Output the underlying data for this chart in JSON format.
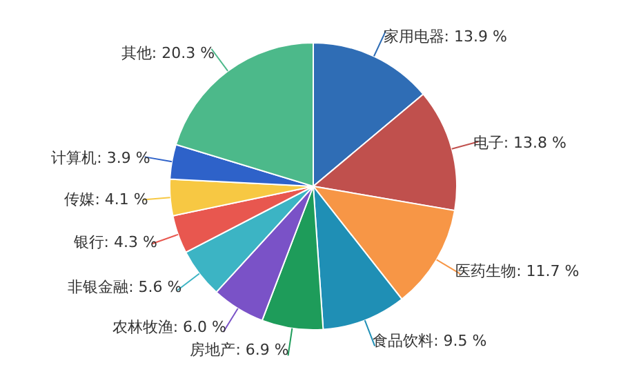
{
  "chart_data": {
    "type": "pie",
    "categories": [
      "家用电器",
      "电子",
      "医药生物",
      "食品饮料",
      "房地产",
      "农林牧渔",
      "非银金融",
      "银行",
      "传媒",
      "计算机",
      "其他"
    ],
    "values": [
      13.9,
      13.8,
      11.7,
      9.5,
      6.9,
      6.0,
      5.6,
      4.3,
      4.1,
      3.9,
      20.3
    ],
    "value_labels": [
      "13.9 %",
      "13.8 %",
      "11.7 %",
      "9.5 %",
      "6.9 %",
      "6.0 %",
      "5.6 %",
      "4.3 %",
      "4.1 %",
      "3.9 %",
      "20.3 %"
    ],
    "colors": [
      "#2f6db5",
      "#c0504d",
      "#f79646",
      "#1f8fb5",
      "#1e9c5a",
      "#7a52c7",
      "#3cb4c4",
      "#e8574f",
      "#f7c843",
      "#2e62c9",
      "#4cb98a"
    ],
    "data_labels": true
  }
}
